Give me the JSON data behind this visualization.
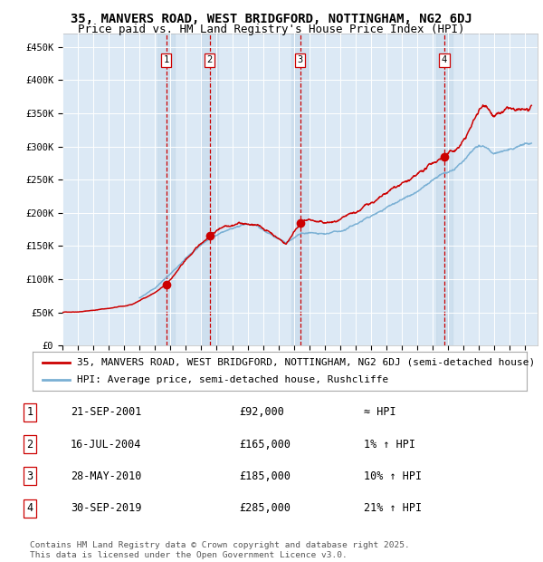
{
  "title": "35, MANVERS ROAD, WEST BRIDGFORD, NOTTINGHAM, NG2 6DJ",
  "subtitle": "Price paid vs. HM Land Registry's House Price Index (HPI)",
  "background_color": "#ffffff",
  "plot_bg_color": "#dce9f5",
  "grid_color": "#ffffff",
  "ylim": [
    0,
    470000
  ],
  "yticks": [
    0,
    50000,
    100000,
    150000,
    200000,
    250000,
    300000,
    350000,
    400000,
    450000
  ],
  "ytick_labels": [
    "£0",
    "£50K",
    "£100K",
    "£150K",
    "£200K",
    "£250K",
    "£300K",
    "£350K",
    "£400K",
    "£450K"
  ],
  "xlim_start": 1995.0,
  "xlim_end": 2025.8,
  "xticks": [
    1995,
    1996,
    1997,
    1998,
    1999,
    2000,
    2001,
    2002,
    2003,
    2004,
    2005,
    2006,
    2007,
    2008,
    2009,
    2010,
    2011,
    2012,
    2013,
    2014,
    2015,
    2016,
    2017,
    2018,
    2019,
    2020,
    2021,
    2022,
    2023,
    2024,
    2025
  ],
  "hpi_line_color": "#7ab0d4",
  "price_line_color": "#cc0000",
  "sale_dot_color": "#cc0000",
  "vline_color": "#cc0000",
  "shade_color": "#c5d9ea",
  "shade_alpha": 0.6,
  "sale_marker_size": 7,
  "legend_label_price": "35, MANVERS ROAD, WEST BRIDGFORD, NOTTINGHAM, NG2 6DJ (semi-detached house)",
  "legend_label_hpi": "HPI: Average price, semi-detached house, Rushcliffe",
  "transactions": [
    {
      "num": 1,
      "date": "21-SEP-2001",
      "date_x": 2001.72,
      "price": 92000,
      "label": "£92,000",
      "hpi_pct": "≈ HPI"
    },
    {
      "num": 2,
      "date": "16-JUL-2004",
      "date_x": 2004.54,
      "price": 165000,
      "label": "£165,000",
      "hpi_pct": "1% ↑ HPI"
    },
    {
      "num": 3,
      "date": "28-MAY-2010",
      "date_x": 2010.41,
      "price": 185000,
      "label": "£185,000",
      "hpi_pct": "10% ↑ HPI"
    },
    {
      "num": 4,
      "date": "30-SEP-2019",
      "date_x": 2019.75,
      "price": 285000,
      "label": "£285,000",
      "hpi_pct": "21% ↑ HPI"
    }
  ],
  "footer_text": "Contains HM Land Registry data © Crown copyright and database right 2025.\nThis data is licensed under the Open Government Licence v3.0.",
  "title_fontsize": 10,
  "subtitle_fontsize": 9,
  "tick_fontsize": 7.5,
  "legend_fontsize": 8,
  "table_fontsize": 8.5
}
